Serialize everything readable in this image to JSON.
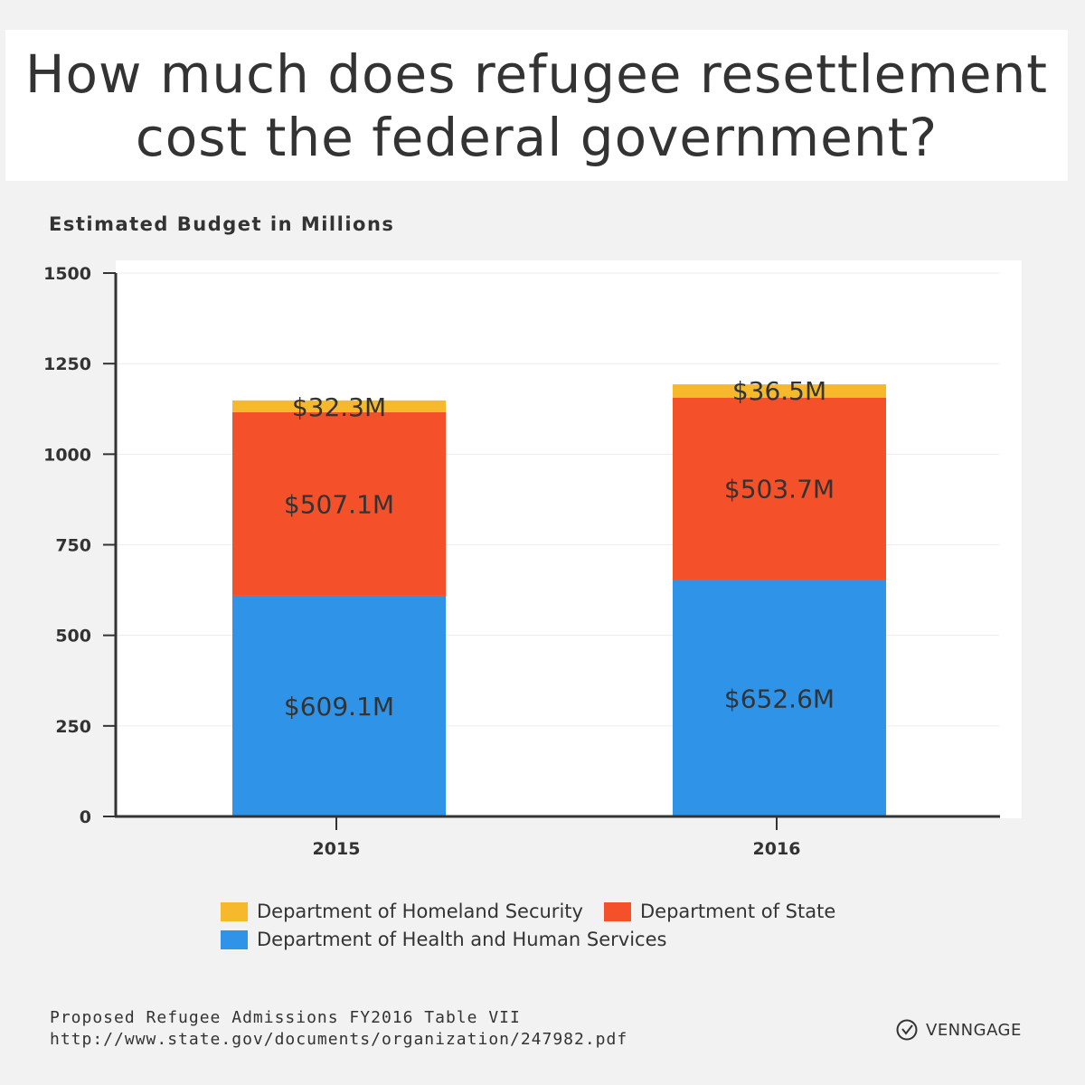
{
  "header": {
    "title": "How much does refugee resettlement\ncost the federal government?"
  },
  "chart_data": {
    "type": "bar",
    "stacked": true,
    "title": "How much does refugee resettlement cost the federal government?",
    "ylabel": "Estimated Budget in Millions",
    "xlabel": "",
    "categories": [
      "2015",
      "2016"
    ],
    "ylim": [
      0,
      1500
    ],
    "yticks": [
      0,
      250,
      500,
      750,
      1000,
      1250,
      1500
    ],
    "grid": true,
    "series": [
      {
        "name": "Department of Health and Human Services",
        "color": "#2f94e8",
        "values": [
          609.1,
          652.6
        ],
        "labels": [
          "$609.1M",
          "$652.6M"
        ]
      },
      {
        "name": "Department of State",
        "color": "#f4502a",
        "values": [
          507.1,
          503.7
        ],
        "labels": [
          "$507.1M",
          "$503.7M"
        ]
      },
      {
        "name": "Department of Homeland Security",
        "color": "#f6b92b",
        "values": [
          32.3,
          36.5
        ],
        "labels": [
          "$32.3M",
          "$36.5M"
        ]
      }
    ],
    "legend": {
      "placement": "bottom-center",
      "order": [
        "Department of Homeland Security",
        "Department of State",
        "Department of Health and Human Services"
      ]
    }
  },
  "footer": {
    "source_line1": "Proposed Refugee Admissions FY2016 Table VII",
    "source_line2": "http://www.state.gov/documents/organization/247982.pdf",
    "brand_name": "VENNGAGE",
    "brand_icon": "venngage-logo-icon"
  }
}
